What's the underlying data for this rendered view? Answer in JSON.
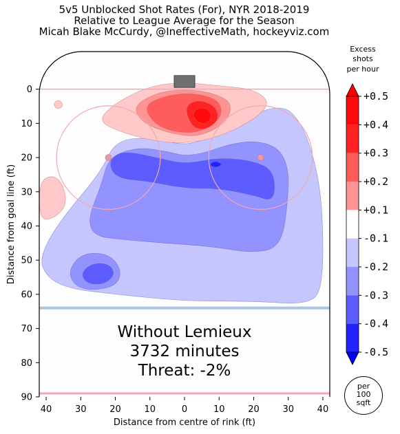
{
  "title": {
    "line1": "5v5 Unblocked Shot Rates (For), NYR 2018-2019",
    "line2": "Relative to League Average for the Season",
    "line3": "Micah Blake McCurdy, @IneffectiveMath, hockeyviz.com"
  },
  "colorbar_title": [
    "Excess",
    "shots",
    "per hour"
  ],
  "scale_note": [
    "per",
    "100",
    "sqft"
  ],
  "annotation": [
    "Without Lemieux",
    "3732 minutes",
    "Threat: -2%"
  ],
  "colors": {
    "pos1": "#ffc9c9",
    "pos2": "#ff9393",
    "pos3": "#ff5c5c",
    "pos4": "#ff2222",
    "pos5": "#ff0a0a",
    "neg1": "#c6c6ff",
    "neg2": "#9393ff",
    "neg3": "#5c5cff",
    "neg4": "#2222ff",
    "neg5": "#0a0aff"
  },
  "chart_data": {
    "type": "heatmap",
    "xlabel": "Distance from centre of rink (ft)",
    "ylabel": "Distance from goal line (ft)",
    "xlim": [
      -42,
      42
    ],
    "ylim": [
      90,
      -11
    ],
    "x_ticks": [
      40,
      30,
      20,
      10,
      0,
      10,
      20,
      30,
      40
    ],
    "x_tick_values": [
      -40,
      -30,
      -20,
      -10,
      0,
      10,
      20,
      30,
      40
    ],
    "y_ticks": [
      0,
      10,
      20,
      30,
      40,
      50,
      60,
      70,
      80,
      90
    ],
    "colorbar": {
      "ticks": [
        "+0.5",
        "+0.4",
        "+0.3",
        "+0.2",
        "+0.1",
        "-0.1",
        "-0.2",
        "-0.3",
        "-0.4",
        "-0.5"
      ],
      "levels": [
        0.5,
        0.4,
        0.3,
        0.2,
        0.1,
        -0.1,
        -0.2,
        -0.3,
        -0.4,
        -0.5
      ]
    },
    "regions": [
      {
        "level": -1,
        "color": "neg1",
        "points": [
          [
            -40,
            45
          ],
          [
            -34,
            36
          ],
          [
            -24,
            24
          ],
          [
            -20,
            15
          ],
          [
            -10,
            14
          ],
          [
            2,
            17
          ],
          [
            14,
            10
          ],
          [
            28,
            4
          ],
          [
            34,
            10
          ],
          [
            38,
            22
          ],
          [
            40,
            36
          ],
          [
            40,
            58
          ],
          [
            36,
            63
          ],
          [
            20,
            62
          ],
          [
            0,
            62
          ],
          [
            -20,
            60
          ],
          [
            -36,
            58
          ],
          [
            -42,
            52
          ]
        ]
      },
      {
        "level": -2,
        "color": "neg2",
        "points": [
          [
            -28,
            38
          ],
          [
            -24,
            28
          ],
          [
            -22,
            20
          ],
          [
            -14,
            17
          ],
          [
            -6,
            18
          ],
          [
            2,
            20
          ],
          [
            16,
            15
          ],
          [
            26,
            16
          ],
          [
            30,
            22
          ],
          [
            30,
            32
          ],
          [
            28,
            46
          ],
          [
            20,
            48
          ],
          [
            8,
            46
          ],
          [
            -6,
            45
          ],
          [
            -18,
            44
          ],
          [
            -26,
            43
          ]
        ]
      },
      {
        "level": -2,
        "color": "neg2",
        "points": [
          [
            -34,
            54
          ],
          [
            -30,
            48
          ],
          [
            -22,
            48
          ],
          [
            -18,
            53
          ],
          [
            -20,
            58
          ],
          [
            -30,
            59
          ]
        ]
      },
      {
        "level": -3,
        "color": "neg3",
        "points": [
          [
            -22,
            21
          ],
          [
            -18,
            18
          ],
          [
            -8,
            20
          ],
          [
            0,
            22
          ],
          [
            10,
            20
          ],
          [
            20,
            21
          ],
          [
            26,
            24
          ],
          [
            26,
            33
          ],
          [
            20,
            31
          ],
          [
            10,
            29
          ],
          [
            0,
            29
          ],
          [
            -10,
            27
          ],
          [
            -20,
            26
          ]
        ]
      },
      {
        "level": -3,
        "color": "neg3",
        "points": [
          [
            -30,
            54
          ],
          [
            -27,
            51
          ],
          [
            -22,
            51
          ],
          [
            -20,
            54
          ],
          [
            -23,
            57
          ],
          [
            -28,
            57
          ]
        ]
      },
      {
        "level": -4,
        "color": "neg4",
        "points": [
          [
            7,
            22
          ],
          [
            9,
            21
          ],
          [
            11,
            22
          ],
          [
            9,
            23
          ]
        ]
      },
      {
        "level": 1,
        "color": "pos1",
        "points": [
          [
            -25,
            9
          ],
          [
            -20,
            4
          ],
          [
            -10,
            -1
          ],
          [
            0,
            -2
          ],
          [
            10,
            -1
          ],
          [
            20,
            0
          ],
          [
            25,
            4
          ],
          [
            20,
            9
          ],
          [
            10,
            14
          ],
          [
            0,
            16
          ],
          [
            -10,
            15
          ],
          [
            -20,
            12
          ]
        ]
      },
      {
        "level": 1,
        "color": "pos1",
        "points": [
          [
            -42,
            27
          ],
          [
            -38,
            25
          ],
          [
            -35,
            28
          ],
          [
            -34,
            34
          ],
          [
            -38,
            38
          ],
          [
            -42,
            38
          ]
        ]
      },
      {
        "level": 1,
        "color": "pos1",
        "points": [
          [
            -38,
            4
          ],
          [
            -36,
            3
          ],
          [
            -35,
            5
          ],
          [
            -37,
            6
          ]
        ]
      },
      {
        "level": 2,
        "color": "pos2",
        "points": [
          [
            -15,
            5
          ],
          [
            -8,
            1
          ],
          [
            0,
            0
          ],
          [
            8,
            1
          ],
          [
            14,
            4
          ],
          [
            12,
            10
          ],
          [
            4,
            14
          ],
          [
            -4,
            13
          ],
          [
            -12,
            10
          ]
        ]
      },
      {
        "level": 3,
        "color": "pos3",
        "points": [
          [
            -12,
            5
          ],
          [
            -6,
            2
          ],
          [
            2,
            1
          ],
          [
            10,
            3
          ],
          [
            11,
            8
          ],
          [
            6,
            12
          ],
          [
            0,
            13
          ],
          [
            -8,
            11
          ]
        ]
      },
      {
        "level": 4,
        "color": "pos4",
        "points": [
          [
            0,
            5
          ],
          [
            4,
            3
          ],
          [
            9,
            5
          ],
          [
            10,
            9
          ],
          [
            6,
            12
          ],
          [
            2,
            11
          ]
        ]
      },
      {
        "level": 5,
        "color": "pos5",
        "points": [
          [
            2,
            7
          ],
          [
            5,
            5
          ],
          [
            8,
            7
          ],
          [
            7,
            10
          ],
          [
            4,
            10
          ]
        ]
      }
    ]
  }
}
